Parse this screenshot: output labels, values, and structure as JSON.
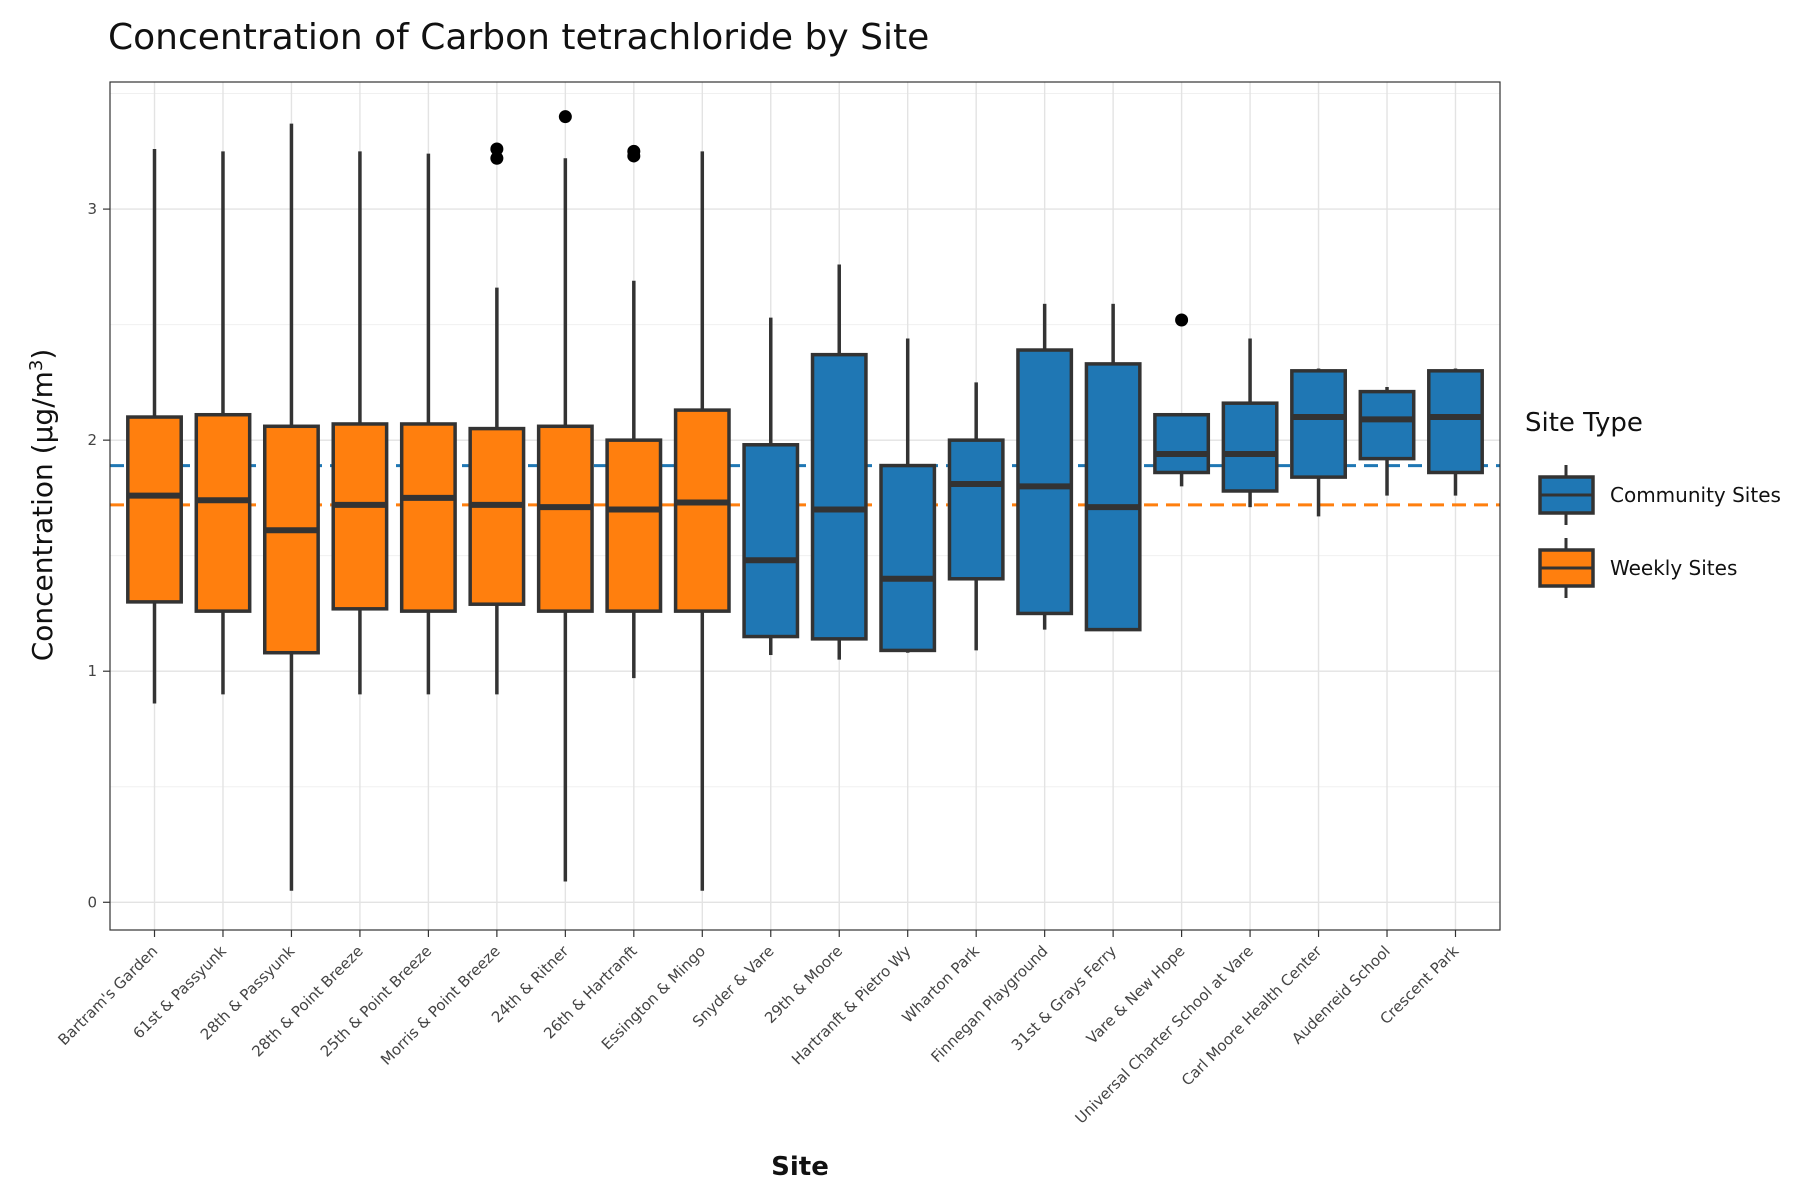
{
  "chart_data": {
    "type": "boxplot",
    "title": "Concentration of Carbon tetrachloride by Site",
    "xlabel": "Site",
    "ylabel": "Concentration (µg/m",
    "ylabel_sup": "3",
    "ylabel_close": ")",
    "ylim": [
      -0.12,
      3.55
    ],
    "yticks": [
      0,
      1,
      2,
      3
    ],
    "ytick_labels": [
      "0",
      "1",
      "2",
      "3"
    ],
    "grid": true,
    "legend": {
      "title": "Site Type",
      "placement": "right",
      "entries": [
        {
          "label": "Community Sites",
          "color": "#1f77b4"
        },
        {
          "label": "Weekly Sites",
          "color": "#ff7f0e"
        }
      ]
    },
    "reference_lines": [
      {
        "group": "Community Sites",
        "value": 1.89,
        "color": "#1f77b4",
        "style": "dashed"
      },
      {
        "group": "Weekly Sites",
        "value": 1.72,
        "color": "#ff7f0e",
        "style": "dashed"
      }
    ],
    "categories": [
      {
        "site": "Bartram's Garden",
        "group": "Weekly Sites",
        "min": 0.86,
        "q1": 1.3,
        "median": 1.76,
        "q3": 2.1,
        "max": 3.26,
        "outliers": []
      },
      {
        "site": "61st & Passyunk",
        "group": "Weekly Sites",
        "min": 0.9,
        "q1": 1.26,
        "median": 1.74,
        "q3": 2.11,
        "max": 3.25,
        "outliers": []
      },
      {
        "site": "28th & Passyunk",
        "group": "Weekly Sites",
        "min": 0.05,
        "q1": 1.08,
        "median": 1.61,
        "q3": 2.06,
        "max": 3.37,
        "outliers": []
      },
      {
        "site": "28th & Point Breeze",
        "group": "Weekly Sites",
        "min": 0.9,
        "q1": 1.27,
        "median": 1.72,
        "q3": 2.07,
        "max": 3.25,
        "outliers": []
      },
      {
        "site": "25th & Point Breeze",
        "group": "Weekly Sites",
        "min": 0.9,
        "q1": 1.26,
        "median": 1.75,
        "q3": 2.07,
        "max": 3.24,
        "outliers": []
      },
      {
        "site": "Morris & Point Breeze",
        "group": "Weekly Sites",
        "min": 0.9,
        "q1": 1.29,
        "median": 1.72,
        "q3": 2.05,
        "max": 2.66,
        "outliers": [
          3.22,
          3.26
        ]
      },
      {
        "site": "24th & Ritner",
        "group": "Weekly Sites",
        "min": 0.09,
        "q1": 1.26,
        "median": 1.71,
        "q3": 2.06,
        "max": 3.22,
        "outliers": [
          3.4
        ]
      },
      {
        "site": "26th & Hartranft",
        "group": "Weekly Sites",
        "min": 0.97,
        "q1": 1.26,
        "median": 1.7,
        "q3": 2.0,
        "max": 2.69,
        "outliers": [
          3.23,
          3.25
        ]
      },
      {
        "site": "Essington & Mingo",
        "group": "Weekly Sites",
        "min": 0.05,
        "q1": 1.26,
        "median": 1.73,
        "q3": 2.13,
        "max": 3.25,
        "outliers": []
      },
      {
        "site": "Snyder & Vare",
        "group": "Community Sites",
        "min": 1.07,
        "q1": 1.15,
        "median": 1.48,
        "q3": 1.98,
        "max": 2.53,
        "outliers": []
      },
      {
        "site": "29th & Moore",
        "group": "Community Sites",
        "min": 1.05,
        "q1": 1.14,
        "median": 1.7,
        "q3": 2.37,
        "max": 2.76,
        "outliers": []
      },
      {
        "site": "Hartranft & Pietro Wy",
        "group": "Community Sites",
        "min": 1.08,
        "q1": 1.09,
        "median": 1.4,
        "q3": 1.89,
        "max": 2.44,
        "outliers": []
      },
      {
        "site": "Wharton Park",
        "group": "Community Sites",
        "min": 1.09,
        "q1": 1.4,
        "median": 1.81,
        "q3": 2.0,
        "max": 2.25,
        "outliers": []
      },
      {
        "site": "Finnegan Playground",
        "group": "Community Sites",
        "min": 1.18,
        "q1": 1.25,
        "median": 1.8,
        "q3": 2.39,
        "max": 2.59,
        "outliers": []
      },
      {
        "site": "31st & Grays Ferry",
        "group": "Community Sites",
        "min": 1.18,
        "q1": 1.18,
        "median": 1.71,
        "q3": 2.33,
        "max": 2.59,
        "outliers": []
      },
      {
        "site": "Vare & New Hope",
        "group": "Community Sites",
        "min": 1.8,
        "q1": 1.86,
        "median": 1.94,
        "q3": 2.11,
        "max": 2.11,
        "outliers": [
          2.52
        ]
      },
      {
        "site": "Universal Charter School at Vare",
        "group": "Community Sites",
        "min": 1.71,
        "q1": 1.78,
        "median": 1.94,
        "q3": 2.16,
        "max": 2.44,
        "outliers": []
      },
      {
        "site": "Carl Moore Health Center",
        "group": "Community Sites",
        "min": 1.67,
        "q1": 1.84,
        "median": 2.1,
        "q3": 2.3,
        "max": 2.31,
        "outliers": []
      },
      {
        "site": "Audenreid School",
        "group": "Community Sites",
        "min": 1.76,
        "q1": 1.92,
        "median": 2.09,
        "q3": 2.21,
        "max": 2.23,
        "outliers": []
      },
      {
        "site": "Crescent Park",
        "group": "Community Sites",
        "min": 1.76,
        "q1": 1.86,
        "median": 2.1,
        "q3": 2.3,
        "max": 2.31,
        "outliers": []
      }
    ]
  }
}
